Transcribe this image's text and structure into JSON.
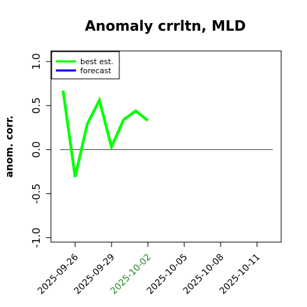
{
  "chart_data": {
    "type": "line",
    "title": "Anomaly crrltn, MLD",
    "xlabel": "",
    "ylabel": "anom. corr.",
    "x_ticks": [
      "2025-09-26",
      "2025-09-29",
      "2025-10-02",
      "2025-10-05",
      "2025-10-08",
      "2025-10-11"
    ],
    "x_tick_colors": [
      "#000000",
      "#000000",
      "#228B22",
      "#000000",
      "#000000",
      "#000000"
    ],
    "y_ticks": [
      -1.0,
      -0.5,
      0.0,
      0.5,
      1.0
    ],
    "y_tick_labels": [
      "-1.0",
      "-0.5",
      "0.0",
      "0.5",
      "1.0"
    ],
    "ylim": [
      -1.05,
      1.12
    ],
    "xlim": [
      "2025-09-24",
      "2025-10-13"
    ],
    "reference_line": 0.0,
    "legend": {
      "position": "top-left",
      "entries": [
        "best est.",
        "forecast"
      ]
    },
    "series": [
      {
        "name": "best est.",
        "color": "#00ff00",
        "x": [
          "2025-09-25",
          "2025-09-26",
          "2025-09-27",
          "2025-09-28",
          "2025-09-29",
          "2025-09-30",
          "2025-10-01",
          "2025-10-02"
        ],
        "values": [
          0.67,
          -0.31,
          0.29,
          0.56,
          0.03,
          0.34,
          0.44,
          0.33
        ]
      },
      {
        "name": "forecast",
        "color": "#0000ff",
        "x": [],
        "values": []
      }
    ]
  }
}
